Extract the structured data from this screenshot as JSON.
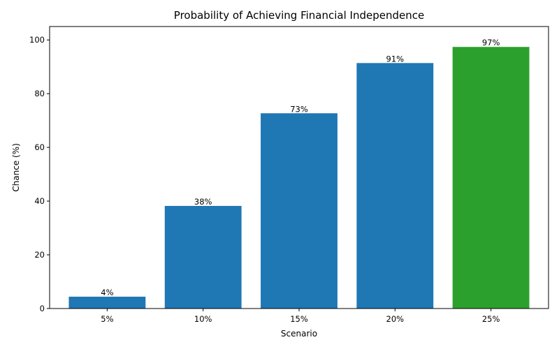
{
  "chart_data": {
    "type": "bar",
    "title": "Probability of Achieving Financial Independence",
    "xlabel": "Scenario",
    "ylabel": "Chance (%)",
    "categories": [
      "5%",
      "10%",
      "15%",
      "20%",
      "25%"
    ],
    "values": [
      4.4,
      38.2,
      72.7,
      91.4,
      97.4
    ],
    "data_labels": [
      "4%",
      "38%",
      "73%",
      "91%",
      "97%"
    ],
    "colors": [
      "#1f77b4",
      "#1f77b4",
      "#1f77b4",
      "#1f77b4",
      "#2ca02c"
    ],
    "ylim": [
      0,
      105
    ],
    "yticks": [
      0,
      20,
      40,
      60,
      80,
      100
    ],
    "grid": false,
    "legend": "none"
  }
}
